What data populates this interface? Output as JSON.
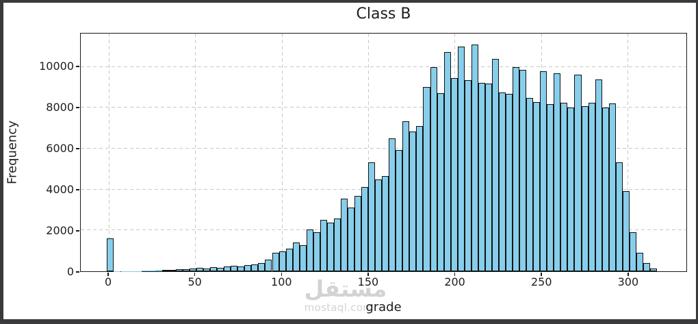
{
  "figure": {
    "background": "#ffffff",
    "frame_color": "#3a3a3c"
  },
  "chart_data": {
    "type": "bar",
    "subtype": "histogram",
    "title": "Class B",
    "xlabel": "grade",
    "ylabel": "Frequency",
    "legend": "none",
    "grid": true,
    "grid_style": "dashed",
    "grid_color": "#c7c7c7",
    "bar_color": "#87CEEB",
    "bar_edge_color": "#111111",
    "xlim": [
      -16.2,
      334.0
    ],
    "ylim": [
      0,
      11633
    ],
    "xticks": [
      0,
      50,
      100,
      150,
      200,
      250,
      300
    ],
    "yticks": [
      0,
      2000,
      4000,
      6000,
      8000,
      10000
    ],
    "bins": {
      "start": -1,
      "width": 3.975,
      "count": 80
    },
    "frequencies": [
      1600,
      8,
      6,
      10,
      14,
      20,
      30,
      60,
      80,
      70,
      100,
      90,
      130,
      160,
      150,
      200,
      180,
      220,
      260,
      240,
      300,
      350,
      400,
      570,
      900,
      960,
      1100,
      1420,
      1290,
      2030,
      1900,
      2510,
      2370,
      2570,
      3570,
      3130,
      3700,
      4140,
      5320,
      4500,
      4650,
      6510,
      5950,
      7340,
      6840,
      7120,
      9010,
      9980,
      8730,
      10730,
      9450,
      11010,
      9340,
      11090,
      9230,
      9180,
      10400,
      8760,
      8680,
      9980,
      9840,
      8490,
      8270,
      9790,
      8180,
      9680,
      8260,
      8010,
      9610,
      8070,
      8260,
      9400,
      8000,
      8220,
      5340,
      3920,
      1920,
      900,
      400,
      120
    ]
  },
  "watermark": {
    "logo_text": "مستقل",
    "site_text": "mostaql.com",
    "color": "#d3d3d3"
  }
}
